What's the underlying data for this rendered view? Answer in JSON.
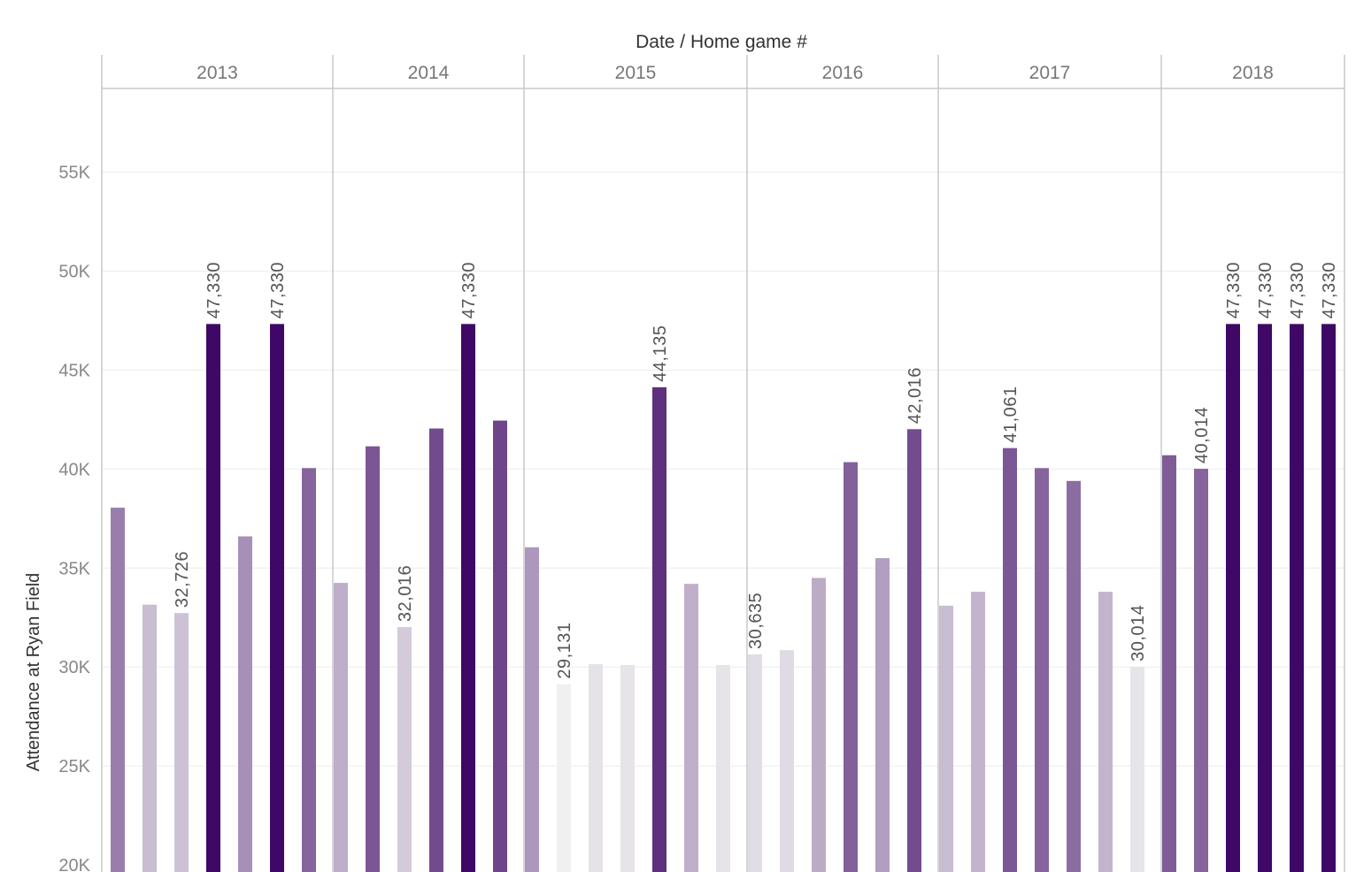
{
  "chart_data": {
    "type": "bar",
    "column_title": "Date / Home game #",
    "ylabel": "Attendance at Ryan Field",
    "ylim": [
      20000,
      57000
    ],
    "yticks": [
      {
        "value": 20000,
        "label": "20K"
      },
      {
        "value": 25000,
        "label": "25K"
      },
      {
        "value": 30000,
        "label": "30K"
      },
      {
        "value": 35000,
        "label": "35K"
      },
      {
        "value": 40000,
        "label": "40K"
      },
      {
        "value": 45000,
        "label": "45K"
      },
      {
        "value": 50000,
        "label": "50K"
      },
      {
        "value": 55000,
        "label": "55K"
      }
    ],
    "grid": true,
    "color_scale": {
      "min": 29131,
      "max": 47330,
      "low_color": "#f0f0f0",
      "high_color": "#3f0766"
    },
    "groups": [
      {
        "year": "2013",
        "values": [
          38050,
          33150,
          32726,
          47330,
          36600,
          47330,
          40050
        ],
        "labels": [
          null,
          null,
          "32,726",
          "47,330",
          null,
          "47,330",
          null
        ]
      },
      {
        "year": "2014",
        "values": [
          34250,
          41150,
          32016,
          42050,
          47330,
          42450
        ],
        "labels": [
          null,
          null,
          "32,016",
          null,
          "47,330",
          null
        ]
      },
      {
        "year": "2015",
        "values": [
          36050,
          29131,
          30150,
          30100,
          44135,
          34200,
          30100
        ],
        "labels": [
          null,
          "29,131",
          null,
          null,
          "44,135",
          null,
          null
        ]
      },
      {
        "year": "2016",
        "values": [
          30635,
          30850,
          34500,
          40350,
          35500,
          42016
        ],
        "labels": [
          "30,635",
          null,
          null,
          null,
          null,
          "42,016"
        ]
      },
      {
        "year": "2017",
        "values": [
          33100,
          33800,
          41061,
          40050,
          39400,
          33800,
          30014
        ],
        "labels": [
          null,
          null,
          "41,061",
          null,
          null,
          null,
          "30,014"
        ]
      },
      {
        "year": "2018",
        "values": [
          40700,
          40014,
          47330,
          47330,
          47330,
          47330
        ],
        "labels": [
          null,
          "40,014",
          "47,330",
          "47,330",
          "47,330",
          "47,330"
        ]
      }
    ]
  }
}
